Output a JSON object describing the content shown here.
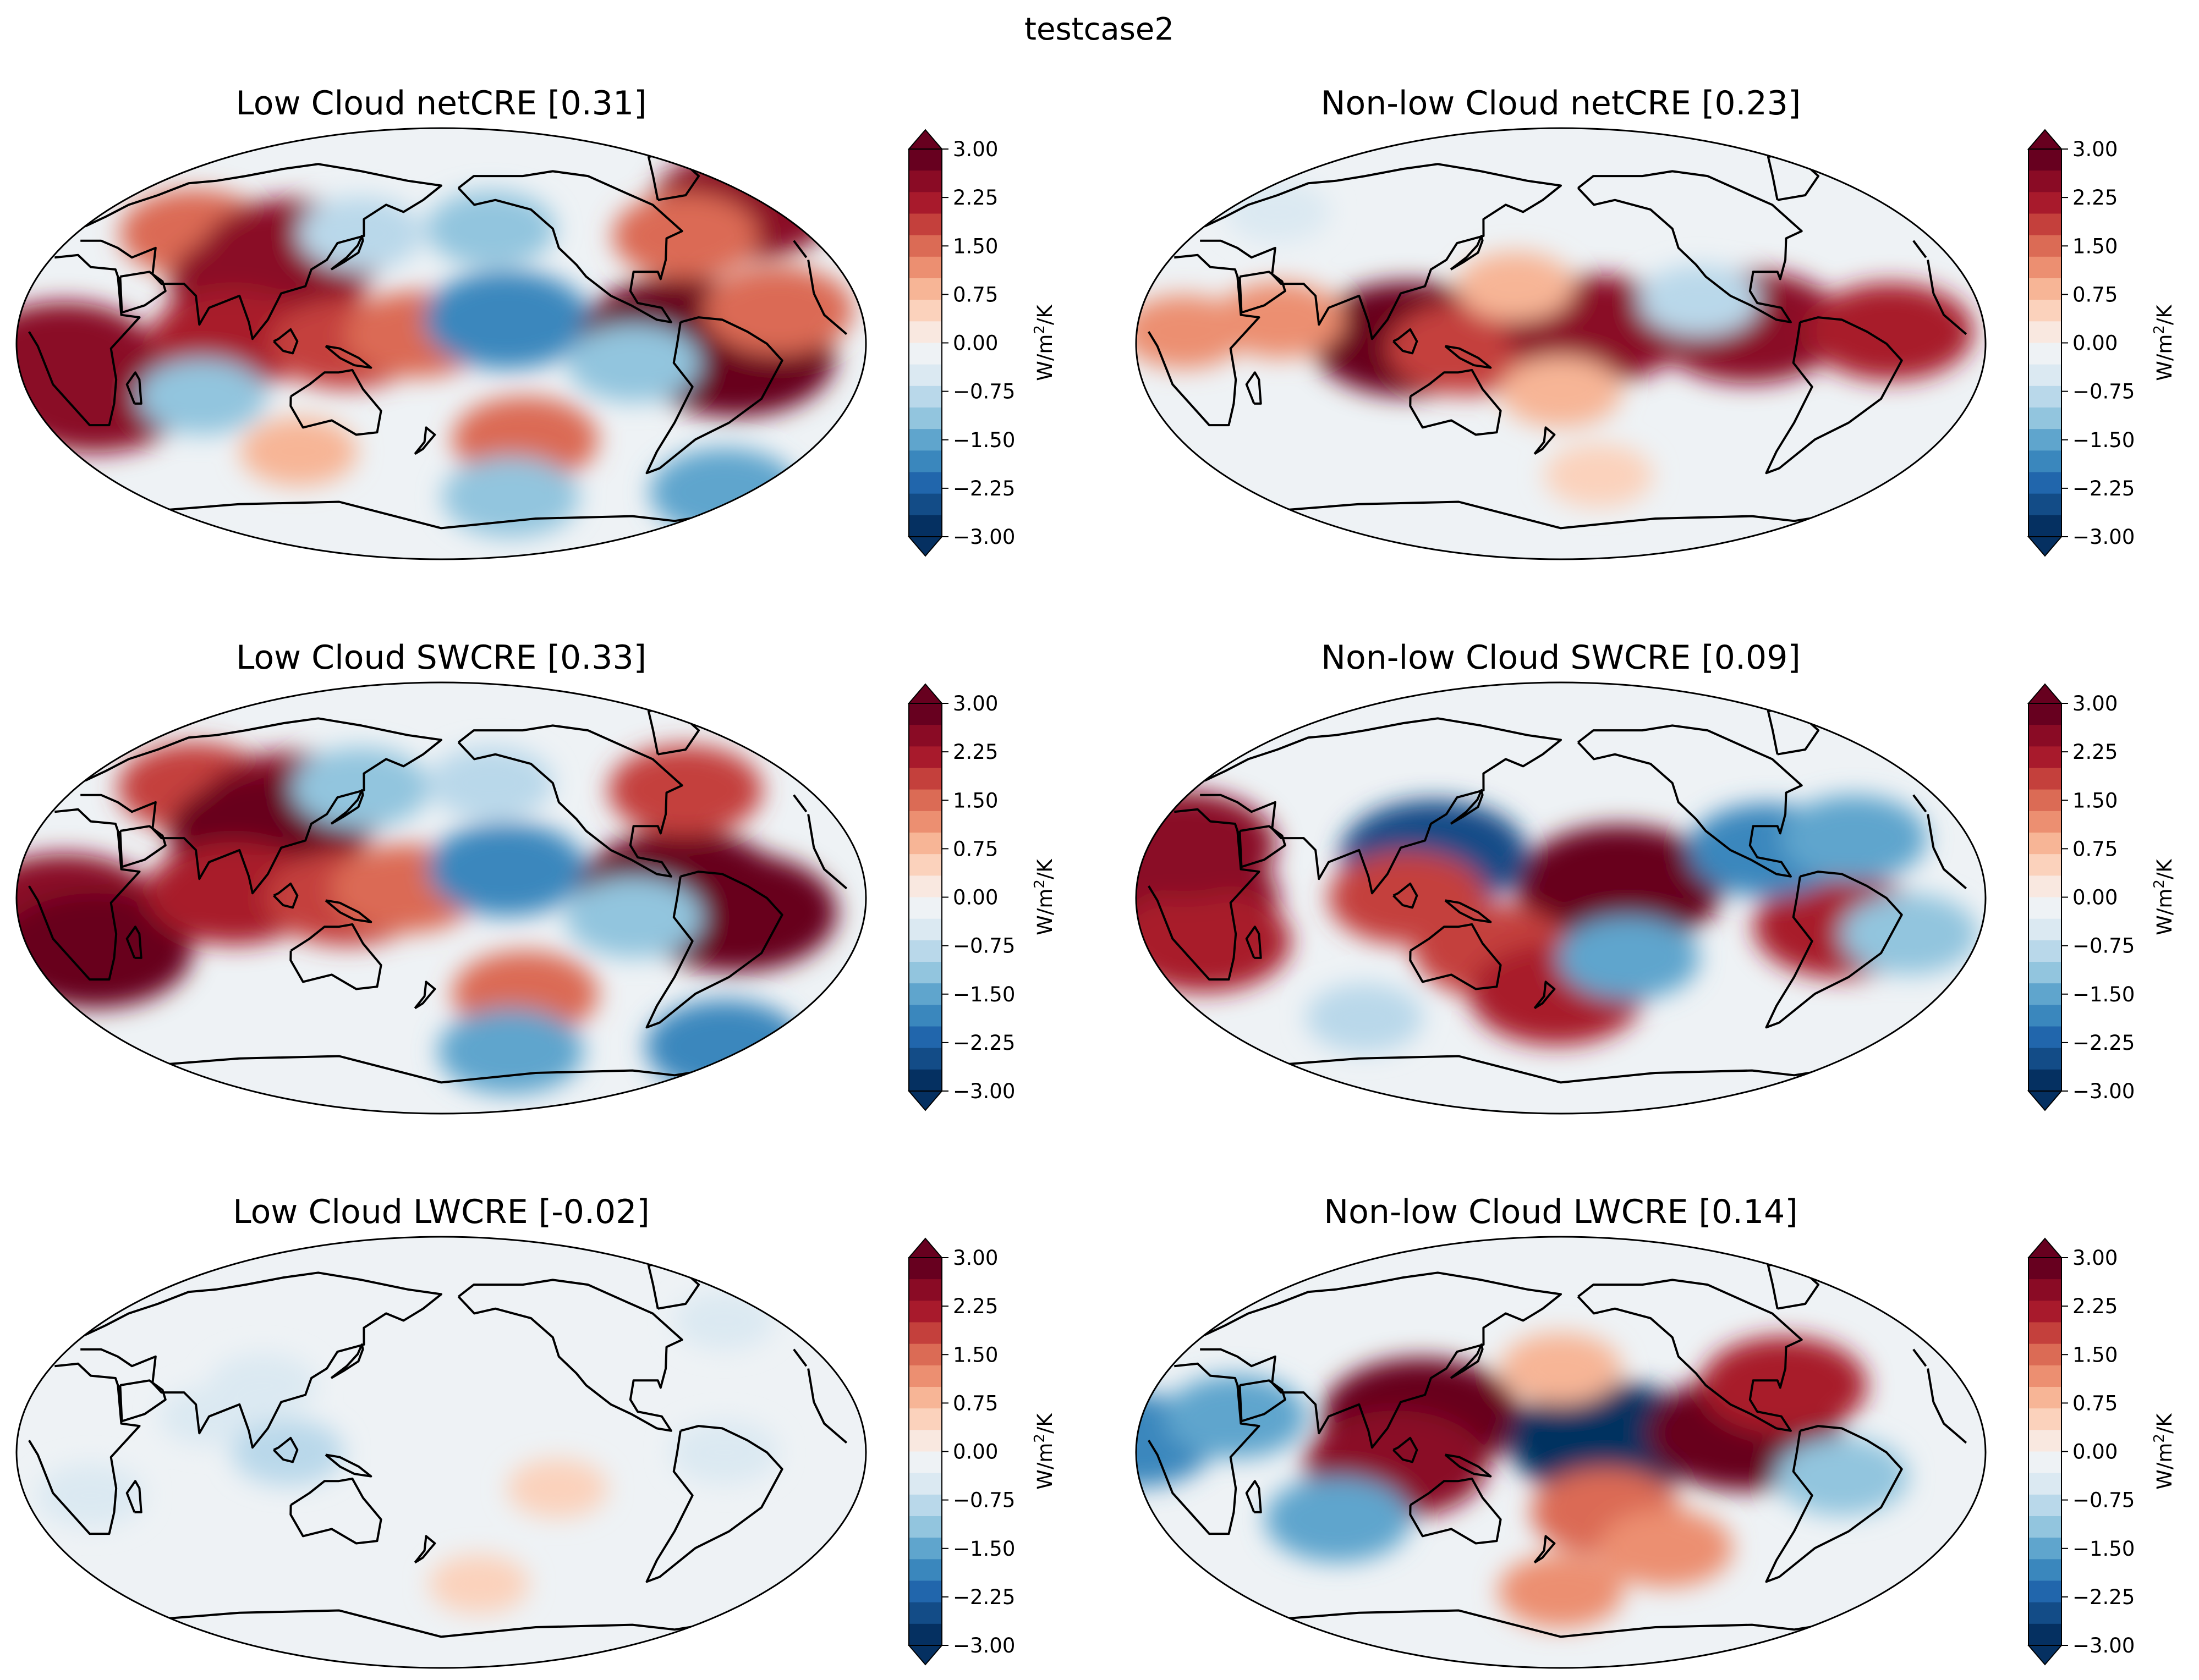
{
  "figure": {
    "suptitle": "testcase2"
  },
  "colors": {
    "ocean_neutral": "#eef2f5",
    "coastline": "#000000",
    "colormap": "RdBu_r",
    "levels": [
      "#053061",
      "#134c87",
      "#2166ac",
      "#3a87bd",
      "#5fa5cd",
      "#92c5de",
      "#b9d8ea",
      "#dbe9f2",
      "#eef2f5",
      "#f9e8e0",
      "#fbd2bc",
      "#f7b596",
      "#ec8f71",
      "#db6b55",
      "#c4403c",
      "#a81a2c",
      "#8a0b25",
      "#67001f"
    ]
  },
  "colorbar": {
    "ticks": [
      "3.00",
      "2.25",
      "1.50",
      "0.75",
      "0.00",
      "−0.75",
      "−1.50",
      "−2.25",
      "−3.00"
    ],
    "unit_base": "W/m",
    "unit_sup": "2",
    "unit_tail": "/K",
    "min": -3.0,
    "max": 3.0,
    "extend": "both"
  },
  "chart_data": [
    {
      "type": "heatmap",
      "title": "Low Cloud netCRE [0.31]",
      "projection": "Robinson, centered on 180°",
      "clim": [
        -3,
        3
      ],
      "features": [
        {
          "lon": 58,
          "lat": 46,
          "value": 1.6
        },
        {
          "lon": 110,
          "lat": 38,
          "value": 2.4
        },
        {
          "lon": 102,
          "lat": 25,
          "value": 2.6
        },
        {
          "lon": 20,
          "lat": -5,
          "value": 2.4
        },
        {
          "lon": 28,
          "lat": -22,
          "value": 2.6
        },
        {
          "lon": 92,
          "lat": 2,
          "value": 2.0
        },
        {
          "lon": 140,
          "lat": 0,
          "value": 1.7
        },
        {
          "lon": 170,
          "lat": 4,
          "value": 1.5
        },
        {
          "lon": 140,
          "lat": 46,
          "value": -1.0
        },
        {
          "lon": 205,
          "lat": 48,
          "value": -1.1
        },
        {
          "lon": 208,
          "lat": 10,
          "value": -2.0
        },
        {
          "lon": 282,
          "lat": 3,
          "value": 2.9
        },
        {
          "lon": 305,
          "lat": -6,
          "value": 2.8
        },
        {
          "lon": 325,
          "lat": 14,
          "value": 1.6
        },
        {
          "lon": 262,
          "lat": -8,
          "value": -1.2
        },
        {
          "lon": 75,
          "lat": -22,
          "value": -1.1
        },
        {
          "lon": 220,
          "lat": -40,
          "value": 1.5
        },
        {
          "lon": 110,
          "lat": -45,
          "value": 0.8
        },
        {
          "lon": 340,
          "lat": -62,
          "value": -1.6
        },
        {
          "lon": 220,
          "lat": -64,
          "value": -1.3
        },
        {
          "lon": 345,
          "lat": 58,
          "value": 2.5
        },
        {
          "lon": 300,
          "lat": 45,
          "value": 1.5
        }
      ]
    },
    {
      "type": "heatmap",
      "title": "Non-low Cloud netCRE [0.23]",
      "projection": "Robinson, centered on 180°",
      "clim": [
        -3,
        3
      ],
      "features": [
        {
          "lon": 115,
          "lat": 2,
          "value": 2.7
        },
        {
          "lon": 140,
          "lat": -2,
          "value": 1.8
        },
        {
          "lon": 195,
          "lat": 6,
          "value": 2.4
        },
        {
          "lon": 260,
          "lat": 7,
          "value": 2.6
        },
        {
          "lon": 320,
          "lat": 5,
          "value": 2.0
        },
        {
          "lon": 240,
          "lat": 18,
          "value": -0.9
        },
        {
          "lon": 160,
          "lat": 24,
          "value": 0.8
        },
        {
          "lon": 60,
          "lat": 10,
          "value": 1.1
        },
        {
          "lon": 20,
          "lat": 5,
          "value": 1.0
        },
        {
          "lon": 180,
          "lat": -20,
          "value": 0.9
        },
        {
          "lon": 200,
          "lat": -55,
          "value": 0.6
        },
        {
          "lon": 30,
          "lat": 55,
          "value": -0.5
        }
      ]
    },
    {
      "type": "heatmap",
      "title": "Low Cloud SWCRE [0.33]",
      "projection": "Robinson, centered on 180°",
      "clim": [
        -3,
        3
      ],
      "features": [
        {
          "lon": 58,
          "lat": 46,
          "value": 1.7
        },
        {
          "lon": 110,
          "lat": 38,
          "value": 2.5
        },
        {
          "lon": 102,
          "lat": 27,
          "value": 2.7
        },
        {
          "lon": 20,
          "lat": -5,
          "value": 2.6
        },
        {
          "lon": 28,
          "lat": -22,
          "value": 2.7
        },
        {
          "lon": 92,
          "lat": 2,
          "value": 2.2
        },
        {
          "lon": 140,
          "lat": 0,
          "value": 1.9
        },
        {
          "lon": 165,
          "lat": 4,
          "value": 1.6
        },
        {
          "lon": 140,
          "lat": 46,
          "value": -1.3
        },
        {
          "lon": 205,
          "lat": 48,
          "value": -1.0
        },
        {
          "lon": 208,
          "lat": 12,
          "value": -1.8
        },
        {
          "lon": 282,
          "lat": 3,
          "value": 3.0
        },
        {
          "lon": 305,
          "lat": -6,
          "value": 2.9
        },
        {
          "lon": 262,
          "lat": -8,
          "value": -1.3
        },
        {
          "lon": 220,
          "lat": -40,
          "value": 1.5
        },
        {
          "lon": 340,
          "lat": -62,
          "value": -1.8
        },
        {
          "lon": 220,
          "lat": -64,
          "value": -1.5
        },
        {
          "lon": 300,
          "lat": 45,
          "value": 1.7
        }
      ]
    },
    {
      "type": "heatmap",
      "title": "Non-low Cloud SWCRE [0.09]",
      "projection": "Robinson, centered on 180°",
      "clim": [
        -3,
        3
      ],
      "features": [
        {
          "lon": 205,
          "lat": 5,
          "value": 3.0
        },
        {
          "lon": 125,
          "lat": 18,
          "value": -2.5
        },
        {
          "lon": 115,
          "lat": 0,
          "value": 1.8
        },
        {
          "lon": 20,
          "lat": 0,
          "value": 2.6
        },
        {
          "lon": 25,
          "lat": -18,
          "value": 2.2
        },
        {
          "lon": 15,
          "lat": 22,
          "value": 2.4
        },
        {
          "lon": 300,
          "lat": -12,
          "value": 2.2
        },
        {
          "lon": 270,
          "lat": 20,
          "value": -1.8
        },
        {
          "lon": 310,
          "lat": 25,
          "value": -1.5
        },
        {
          "lon": 150,
          "lat": -22,
          "value": 1.8
        },
        {
          "lon": 178,
          "lat": -40,
          "value": 2.2
        },
        {
          "lon": 210,
          "lat": -25,
          "value": -1.4
        },
        {
          "lon": 330,
          "lat": -15,
          "value": -1.3
        },
        {
          "lon": 80,
          "lat": -50,
          "value": -0.8
        }
      ]
    },
    {
      "type": "heatmap",
      "title": "Low Cloud LWCRE [-0.02]",
      "projection": "Robinson, centered on 180°",
      "clim": [
        -3,
        3
      ],
      "features": [
        {
          "lon": 100,
          "lat": 28,
          "value": -0.6
        },
        {
          "lon": 80,
          "lat": 15,
          "value": -0.4
        },
        {
          "lon": 28,
          "lat": -18,
          "value": -0.6
        },
        {
          "lon": 115,
          "lat": 0,
          "value": -0.7
        },
        {
          "lon": 300,
          "lat": 0,
          "value": -0.6
        },
        {
          "lon": 230,
          "lat": -15,
          "value": 0.4
        },
        {
          "lon": 200,
          "lat": -55,
          "value": 0.4
        },
        {
          "lon": 330,
          "lat": 55,
          "value": -0.4
        }
      ]
    },
    {
      "type": "heatmap",
      "title": "Non-low Cloud LWCRE [0.14]",
      "projection": "Robinson, centered on 180°",
      "clim": [
        -3,
        3
      ],
      "features": [
        {
          "lon": 120,
          "lat": 15,
          "value": 2.8
        },
        {
          "lon": 110,
          "lat": -5,
          "value": 2.4
        },
        {
          "lon": 200,
          "lat": 5,
          "value": -2.8
        },
        {
          "lon": 258,
          "lat": 8,
          "value": 2.7
        },
        {
          "lon": 280,
          "lat": 28,
          "value": 2.0
        },
        {
          "lon": 0,
          "lat": 5,
          "value": -1.8
        },
        {
          "lon": 40,
          "lat": 15,
          "value": -1.4
        },
        {
          "lon": 200,
          "lat": -25,
          "value": 1.6
        },
        {
          "lon": 300,
          "lat": -10,
          "value": -1.2
        },
        {
          "lon": 80,
          "lat": -28,
          "value": -1.5
        },
        {
          "lon": 180,
          "lat": 35,
          "value": 0.9
        },
        {
          "lon": 180,
          "lat": -58,
          "value": 1.0
        },
        {
          "lon": 230,
          "lat": -40,
          "value": 1.2
        }
      ]
    }
  ]
}
